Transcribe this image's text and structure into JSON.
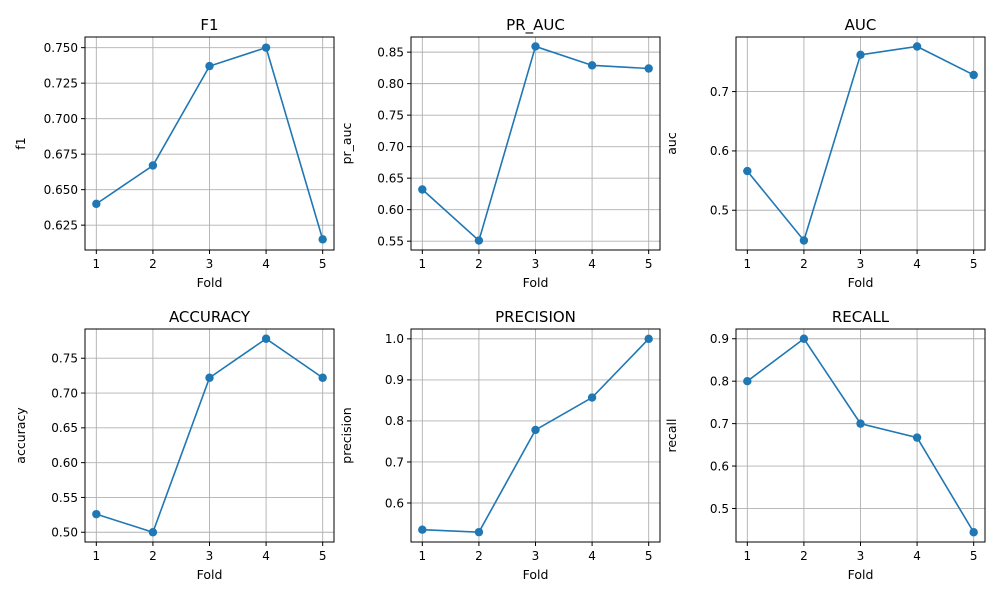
{
  "chart_data": [
    {
      "type": "line",
      "title": "F1",
      "xlabel": "Fold",
      "ylabel": "f1",
      "x": [
        1,
        2,
        3,
        4,
        5
      ],
      "series": [
        {
          "values": [
            0.64,
            0.667,
            0.737,
            0.75,
            0.615
          ]
        }
      ],
      "xticks": [
        "1",
        "2",
        "3",
        "4",
        "5"
      ],
      "yticks": [
        "0.625",
        "0.650",
        "0.675",
        "0.700",
        "0.725",
        "0.750"
      ],
      "ylim": [
        0.6075,
        0.7575
      ],
      "xlim": [
        0.8,
        5.2
      ],
      "grid": true
    },
    {
      "type": "line",
      "title": "PR_AUC",
      "xlabel": "Fold",
      "ylabel": "pr_auc",
      "x": [
        1,
        2,
        3,
        4,
        5
      ],
      "series": [
        {
          "values": [
            0.632,
            0.551,
            0.859,
            0.829,
            0.824
          ]
        }
      ],
      "xticks": [
        "1",
        "2",
        "3",
        "4",
        "5"
      ],
      "yticks": [
        "0.55",
        "0.60",
        "0.65",
        "0.70",
        "0.75",
        "0.80",
        "0.85"
      ],
      "ylim": [
        0.536,
        0.874
      ],
      "xlim": [
        0.8,
        5.2
      ],
      "grid": true
    },
    {
      "type": "line",
      "title": "AUC",
      "xlabel": "Fold",
      "ylabel": "auc",
      "x": [
        1,
        2,
        3,
        4,
        5
      ],
      "series": [
        {
          "values": [
            0.566,
            0.449,
            0.762,
            0.776,
            0.728
          ]
        }
      ],
      "xticks": [
        "1",
        "2",
        "3",
        "4",
        "5"
      ],
      "yticks": [
        "0.5",
        "0.6",
        "0.7"
      ],
      "ylim": [
        0.433,
        0.792
      ],
      "xlim": [
        0.8,
        5.2
      ],
      "grid": true
    },
    {
      "type": "line",
      "title": "ACCURACY",
      "xlabel": "Fold",
      "ylabel": "accuracy",
      "x": [
        1,
        2,
        3,
        4,
        5
      ],
      "series": [
        {
          "values": [
            0.526,
            0.5,
            0.722,
            0.778,
            0.722
          ]
        }
      ],
      "xticks": [
        "1",
        "2",
        "3",
        "4",
        "5"
      ],
      "yticks": [
        "0.50",
        "0.55",
        "0.60",
        "0.65",
        "0.70",
        "0.75"
      ],
      "ylim": [
        0.486,
        0.792
      ],
      "xlim": [
        0.8,
        5.2
      ],
      "grid": true
    },
    {
      "type": "line",
      "title": "PRECISION",
      "xlabel": "Fold",
      "ylabel": "precision",
      "x": [
        1,
        2,
        3,
        4,
        5
      ],
      "series": [
        {
          "values": [
            0.535,
            0.529,
            0.778,
            0.857,
            1.0
          ]
        }
      ],
      "xticks": [
        "1",
        "2",
        "3",
        "4",
        "5"
      ],
      "yticks": [
        "0.6",
        "0.7",
        "0.8",
        "0.9",
        "1.0"
      ],
      "ylim": [
        0.505,
        1.024
      ],
      "xlim": [
        0.8,
        5.2
      ],
      "grid": true
    },
    {
      "type": "line",
      "title": "RECALL",
      "xlabel": "Fold",
      "ylabel": "recall",
      "x": [
        1,
        2,
        3,
        4,
        5
      ],
      "series": [
        {
          "values": [
            0.8,
            0.9,
            0.7,
            0.667,
            0.444
          ]
        }
      ],
      "xticks": [
        "1",
        "2",
        "3",
        "4",
        "5"
      ],
      "yticks": [
        "0.5",
        "0.6",
        "0.7",
        "0.8",
        "0.9"
      ],
      "ylim": [
        0.421,
        0.923
      ],
      "xlim": [
        0.8,
        5.2
      ],
      "grid": true
    }
  ],
  "colors": {
    "series": "#1f77b4",
    "grid": "#b0b0b0"
  }
}
